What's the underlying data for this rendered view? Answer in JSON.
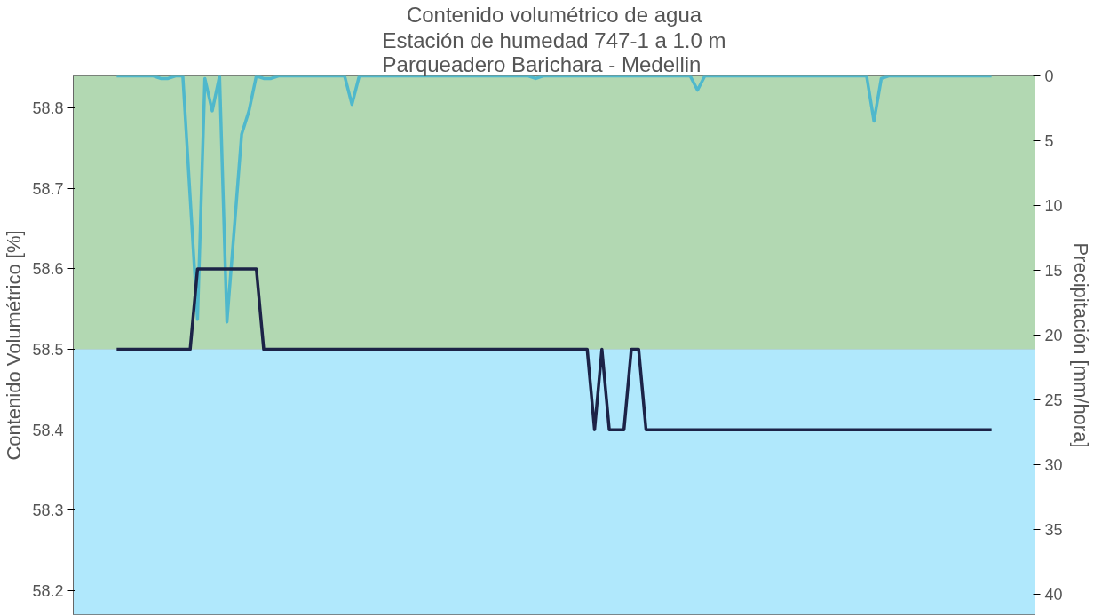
{
  "chart_data": {
    "type": "line",
    "title": "Contenido volumétrico de agua",
    "subtitle": "Estación de humedad 747-1 a 1.0 m\nParqueadero Barichara - Medellin",
    "ylabel": "Contenido Volumétrico [%]",
    "y2label": "Precipitación [mm/hora]",
    "categories": [
      null,
      null,
      null,
      null,
      null,
      null,
      null,
      null,
      null,
      null,
      null,
      null,
      null,
      null,
      null,
      null,
      null,
      null,
      null,
      null,
      null,
      null,
      null,
      null,
      null,
      null,
      null,
      null,
      null,
      null,
      null,
      null,
      null,
      null,
      null,
      null,
      null,
      null,
      null,
      null,
      null,
      null,
      null,
      null,
      null,
      null,
      null,
      null,
      null,
      null,
      null,
      null,
      null,
      null,
      null,
      null,
      null,
      null,
      null,
      null,
      null,
      null,
      null,
      null,
      null,
      null,
      null,
      null,
      null,
      null,
      null,
      null,
      null,
      null,
      null,
      null,
      null,
      null,
      null,
      null,
      null,
      null,
      null,
      null,
      null,
      null,
      null,
      null,
      null,
      null,
      null,
      null,
      null,
      null,
      null,
      null,
      null,
      null,
      null,
      null,
      null,
      null,
      null,
      null,
      null,
      null,
      null,
      null,
      null,
      null,
      null,
      null,
      null,
      null,
      null,
      null,
      null,
      null,
      null,
      null
    ],
    "ylim": [
      58.17,
      58.84
    ],
    "yticks": [
      58.2,
      58.3,
      58.4,
      58.5,
      58.6,
      58.7,
      58.8
    ],
    "y2lim": [
      41.6,
      0
    ],
    "y2ticks": [
      0,
      5,
      10,
      15,
      20,
      25,
      30,
      35,
      40
    ],
    "grid": "y",
    "series": [
      {
        "axis": "y2",
        "color": "#4fb8cc",
        "values": [
          0,
          0,
          0,
          0,
          0,
          0,
          0.2,
          0.2,
          0,
          0,
          9.4,
          18.8,
          0.2,
          2.7,
          0,
          19.0,
          11.8,
          4.5,
          2.7,
          0,
          0.2,
          0.2,
          0,
          0,
          0,
          0,
          0,
          0,
          0,
          0,
          0,
          0,
          2.2,
          0,
          0,
          0,
          0,
          0,
          0,
          0,
          0,
          0,
          0,
          0,
          0,
          0,
          0,
          0,
          0,
          0,
          0,
          0,
          0,
          0,
          0,
          0,
          0,
          0.2,
          0,
          0,
          0,
          0,
          0,
          0,
          0,
          0,
          0,
          0,
          0,
          0,
          0,
          0,
          0,
          0,
          0,
          0,
          0,
          0,
          0,
          1.1,
          0,
          0,
          0,
          0,
          0,
          0,
          0,
          0,
          0,
          0,
          0,
          0,
          0,
          0,
          0,
          0,
          0,
          0,
          0,
          0,
          0,
          0,
          0,
          3.5,
          0.2,
          0,
          0,
          0,
          0,
          0,
          0,
          0,
          0,
          0,
          0,
          0,
          0,
          0,
          0,
          0
        ]
      },
      {
        "color": "#1c2347",
        "values": [
          58.5,
          58.5,
          58.5,
          58.5,
          58.5,
          58.5,
          58.5,
          58.5,
          58.5,
          58.5,
          58.5,
          58.6,
          58.6,
          58.6,
          58.6,
          58.6,
          58.6,
          58.6,
          58.6,
          58.6,
          58.5,
          58.5,
          58.5,
          58.5,
          58.5,
          58.5,
          58.5,
          58.5,
          58.5,
          58.5,
          58.5,
          58.5,
          58.5,
          58.5,
          58.5,
          58.5,
          58.5,
          58.5,
          58.5,
          58.5,
          58.5,
          58.5,
          58.5,
          58.5,
          58.5,
          58.5,
          58.5,
          58.5,
          58.5,
          58.5,
          58.5,
          58.5,
          58.5,
          58.5,
          58.5,
          58.5,
          58.5,
          58.5,
          58.5,
          58.5,
          58.5,
          58.5,
          58.5,
          58.5,
          58.5,
          58.4,
          58.5,
          58.4,
          58.4,
          58.4,
          58.5,
          58.5,
          58.4,
          58.4,
          58.4,
          58.4,
          58.4,
          58.4,
          58.4,
          58.4,
          58.4,
          58.4,
          58.4,
          58.4,
          58.4,
          58.4,
          58.4,
          58.4,
          58.4,
          58.4,
          58.4,
          58.4,
          58.4,
          58.4,
          58.4,
          58.4,
          58.4,
          58.4,
          58.4,
          58.4,
          58.4,
          58.4,
          58.4,
          58.4,
          58.4,
          58.4,
          58.4,
          58.4,
          58.4,
          58.4,
          58.4,
          58.4,
          58.4,
          58.4,
          58.4,
          58.4,
          58.4,
          58.4,
          58.4,
          58.4
        ]
      }
    ],
    "bands": [
      {
        "axis": "y",
        "from": 58.5,
        "to": 58.84,
        "color": "#b2d8b2"
      },
      {
        "axis": "y",
        "from": 58.17,
        "to": 58.5,
        "color": "#b0e8fc"
      }
    ]
  }
}
